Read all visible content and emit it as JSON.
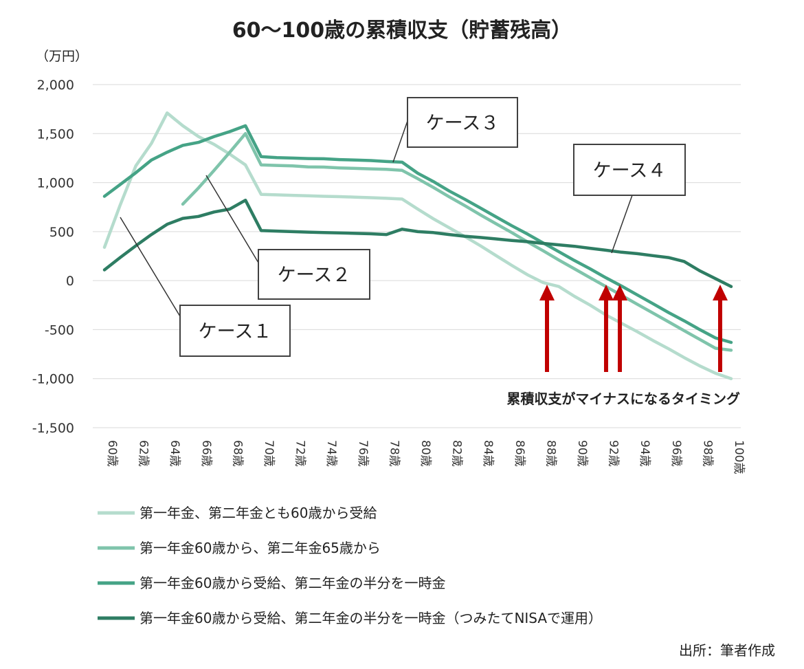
{
  "chart_data": {
    "type": "line",
    "title": "60〜100歳の累積収支（貯蓄残高）",
    "unit_label": "（万円）",
    "xlabel": "",
    "ylabel": "",
    "ylim": [
      -1500,
      2000
    ],
    "yticks": [
      2000,
      1500,
      1000,
      500,
      0,
      -500,
      -1000,
      -1500
    ],
    "ytick_labels": [
      "2,000",
      "1,500",
      "1,000",
      "500",
      "0",
      "-500",
      "-1,000",
      "-1,500"
    ],
    "x": [
      60,
      61,
      62,
      63,
      64,
      65,
      66,
      67,
      68,
      69,
      70,
      71,
      72,
      73,
      74,
      75,
      76,
      77,
      78,
      79,
      80,
      81,
      82,
      83,
      84,
      85,
      86,
      87,
      88,
      89,
      90,
      91,
      92,
      93,
      94,
      95,
      96,
      97,
      98,
      99,
      100
    ],
    "xtick_values": [
      60,
      62,
      64,
      66,
      68,
      70,
      72,
      74,
      76,
      78,
      80,
      82,
      84,
      86,
      88,
      90,
      92,
      94,
      96,
      98,
      100
    ],
    "xtick_labels": [
      "60歳",
      "62歳",
      "64歳",
      "66歳",
      "68歳",
      "70歳",
      "72歳",
      "74歳",
      "76歳",
      "78歳",
      "80歳",
      "82歳",
      "84歳",
      "86歳",
      "88歳",
      "90歳",
      "92歳",
      "94歳",
      "96歳",
      "98歳",
      "100歳"
    ],
    "grid": true,
    "legend_position": "bottom",
    "series": [
      {
        "name": "第一年金、第二年金とも60歳から受給",
        "color": "#b5dccd",
        "values": [
          340,
          770,
          1170,
          1400,
          1710,
          1580,
          1470,
          1390,
          1290,
          1180,
          880,
          875,
          870,
          866,
          860,
          857,
          852,
          846,
          840,
          832,
          730,
          630,
          540,
          450,
          355,
          255,
          155,
          60,
          -20,
          -60,
          -160,
          -250,
          -350,
          -435,
          -520,
          -610,
          -695,
          -785,
          -870,
          -945,
          -1000
        ]
      },
      {
        "name": "第一年金60歳から、第二年金65歳から",
        "color": "#7fc4ab",
        "values": [
          null,
          null,
          null,
          null,
          null,
          780,
          945,
          1125,
          1310,
          1500,
          1180,
          1175,
          1170,
          1160,
          1158,
          1150,
          1145,
          1140,
          1135,
          1125,
          1040,
          950,
          855,
          765,
          670,
          580,
          490,
          395,
          305,
          210,
          120,
          30,
          -60,
          -150,
          -240,
          -330,
          -420,
          -510,
          -600,
          -690,
          -710
        ]
      },
      {
        "name": "第一年金60歳から受給、第二年金の半分を一時金",
        "color": "#45a386",
        "values": [
          860,
          980,
          1100,
          1230,
          1310,
          1380,
          1410,
          1470,
          1520,
          1580,
          1265,
          1255,
          1250,
          1245,
          1243,
          1235,
          1230,
          1225,
          1215,
          1208,
          1095,
          1010,
          915,
          830,
          740,
          650,
          560,
          475,
          385,
          295,
          205,
          120,
          30,
          -55,
          -145,
          -235,
          -325,
          -410,
          -500,
          -585,
          -630
        ]
      },
      {
        "name": "第一年金60歳から受給、第二年金の半分を一時金（つみたてNISAで運用）",
        "color": "#2e7d63",
        "values": [
          110,
          235,
          355,
          470,
          575,
          635,
          655,
          700,
          730,
          820,
          510,
          505,
          500,
          495,
          490,
          487,
          482,
          478,
          470,
          525,
          500,
          490,
          470,
          453,
          440,
          425,
          410,
          397,
          380,
          365,
          350,
          330,
          310,
          290,
          275,
          255,
          235,
          195,
          100,
          20,
          -60
        ]
      }
    ],
    "callouts": [
      "ケース１",
      "ケース２",
      "ケース３",
      "ケース４"
    ],
    "annotation": "累積収支がマイナスになるタイミング",
    "arrow_ages": [
      88,
      92,
      93,
      100
    ],
    "arrow_color": "#c00000",
    "source": "出所：筆者作成"
  }
}
